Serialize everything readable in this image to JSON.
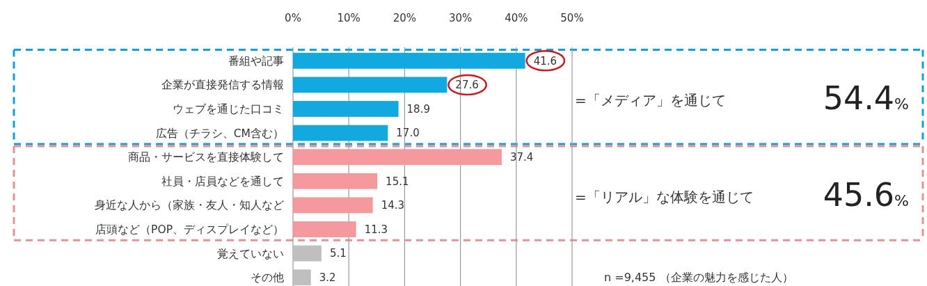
{
  "chart_data": {
    "type": "bar",
    "orientation": "horizontal",
    "categories": [
      "番組や記事",
      "企業が直接発信する情報",
      "ウェブを通じた口コミ",
      "広告（チラシ、CM含む）",
      "商品・サービスを直接体験して",
      "社員・店員などを通して",
      "身近な人から（家族・友人・知人など",
      "店頭など（POP、ディスプレイなど）",
      "覚えていない",
      "その他"
    ],
    "values": [
      41.6,
      27.6,
      18.9,
      17.0,
      37.4,
      15.1,
      14.3,
      11.3,
      5.1,
      3.2
    ],
    "colors": [
      "#12a9e1",
      "#12a9e1",
      "#12a9e1",
      "#12a9e1",
      "#f5999d",
      "#f5999d",
      "#f5999d",
      "#f5999d",
      "#bfbfbf",
      "#bfbfbf"
    ],
    "xlim": [
      0,
      50
    ],
    "xticks": [
      {
        "value": 0,
        "label": "0%"
      },
      {
        "value": 10,
        "label": "10%"
      },
      {
        "value": 20,
        "label": "20%"
      },
      {
        "value": 30,
        "label": "30%"
      },
      {
        "value": 40,
        "label": "40%"
      },
      {
        "value": 50,
        "label": "50%"
      }
    ],
    "grid": "x",
    "value_labels": [
      null,
      null,
      "18.9",
      "17.0",
      "37.4",
      "15.1",
      "14.3",
      "11.3",
      "5.1",
      "3.2"
    ],
    "annotations": [
      {
        "text": "41.6",
        "x": 41.6,
        "y": "番組や記事"
      },
      {
        "text": "27.6",
        "x": 27.6,
        "y": "企業が直接発信する情報"
      },
      "=「メディア」を通じて",
      "54.4%",
      "=「リアル」な体験を通じて",
      "45.6%",
      "n =9,455 （企業の魅力を感じた人）"
    ]
  }
}
